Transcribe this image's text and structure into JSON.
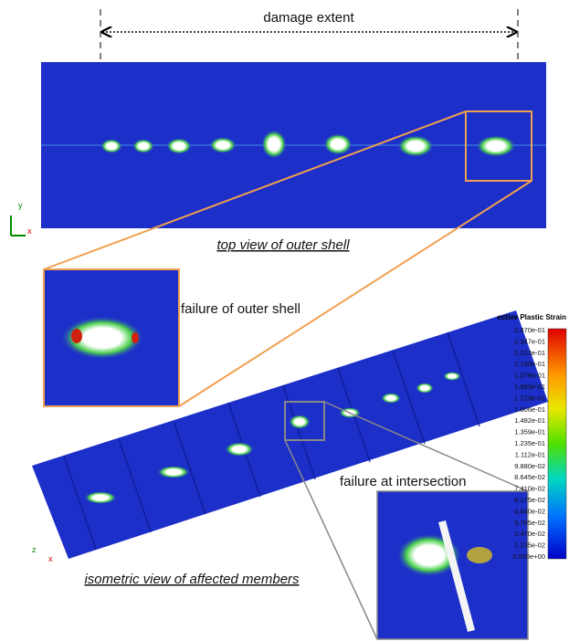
{
  "annotations": {
    "damage_extent": "damage extent",
    "top_view": "top view of outer shell",
    "failure_outer_shell": "failure of outer shell",
    "isometric_view": "isometric view of affected members",
    "failure_intersection": "failure at intersection"
  },
  "axes_triad": {
    "top": [
      "y",
      "x"
    ],
    "iso": [
      "z",
      "x"
    ]
  },
  "legend": {
    "title": "ective Plastic Strain",
    "ticks": [
      "2.470e-01",
      "2.347e-01",
      "2.223e-01",
      "2.100e-01",
      "1.976e-01",
      "1.853e-01",
      "1.729e-01",
      "1.606e-01",
      "1.482e-01",
      "1.359e-01",
      "1.235e-01",
      "1.112e-01",
      "9.880e-02",
      "8.645e-02",
      "7.410e-02",
      "6.175e-02",
      "4.940e-02",
      "3.705e-02",
      "2.470e-02",
      "1.235e-02",
      "0.000e+00"
    ]
  }
}
